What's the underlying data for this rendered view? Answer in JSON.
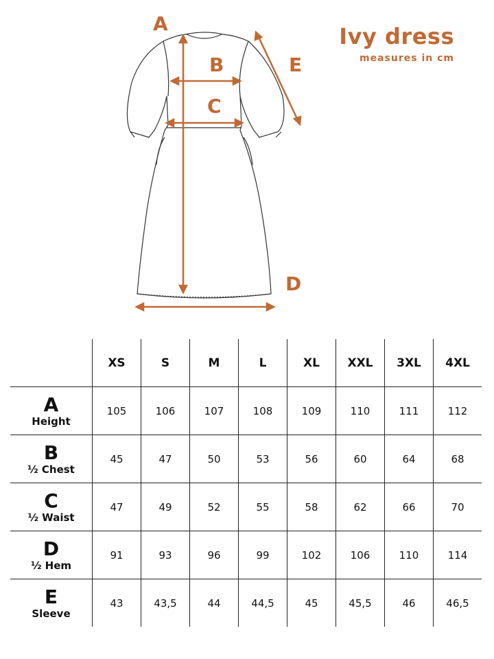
{
  "title": "Ivy dress",
  "subtitle": "measures in cm",
  "diagram_letters": [
    "A",
    "B",
    "C",
    "D",
    "E"
  ],
  "accent_color": "#c06a35",
  "table": {
    "sizes": [
      "XS",
      "S",
      "M",
      "L",
      "XL",
      "XXL",
      "3XL",
      "4XL"
    ],
    "rows": [
      {
        "letter": "A",
        "label": "Height",
        "values": [
          "105",
          "106",
          "107",
          "108",
          "109",
          "110",
          "111",
          "112"
        ]
      },
      {
        "letter": "B",
        "label": "½ Chest",
        "values": [
          "45",
          "47",
          "50",
          "53",
          "56",
          "60",
          "64",
          "68"
        ]
      },
      {
        "letter": "C",
        "label": "½ Waist",
        "values": [
          "47",
          "49",
          "52",
          "55",
          "58",
          "62",
          "66",
          "70"
        ]
      },
      {
        "letter": "D",
        "label": "½ Hem",
        "values": [
          "91",
          "93",
          "96",
          "99",
          "102",
          "106",
          "110",
          "114"
        ]
      },
      {
        "letter": "E",
        "label": "Sleeve",
        "values": [
          "43",
          "43,5",
          "44",
          "44,5",
          "45",
          "45,5",
          "46",
          "46,5"
        ]
      }
    ]
  }
}
